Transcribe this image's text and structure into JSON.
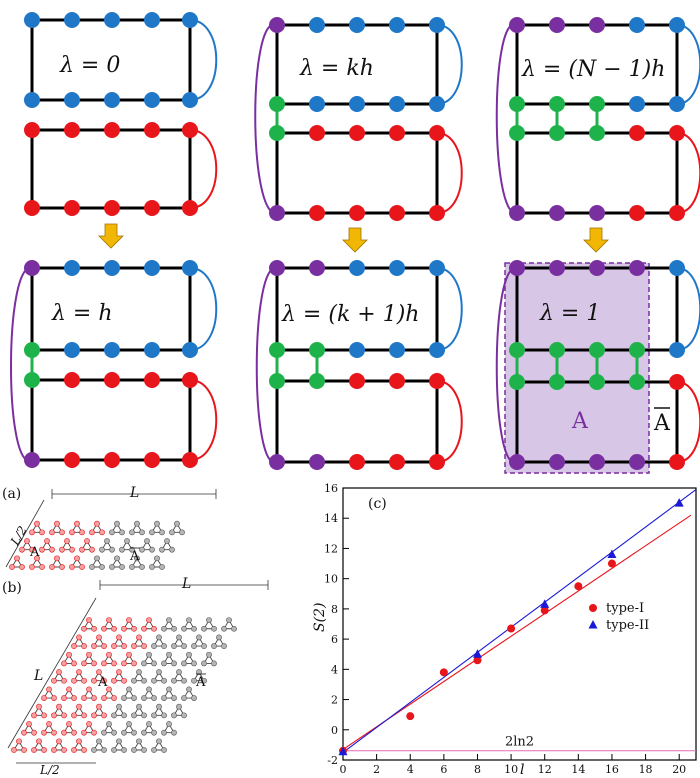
{
  "panels": {
    "top_left_label": "λ = 0",
    "top_mid_label": "λ = kh",
    "top_right_label": "λ = (N − 1)h",
    "bottom_left_label": "λ = h",
    "bottom_mid_label": "λ = (k + 1)h",
    "bottom_right_label": "λ = 1",
    "region_a": "A",
    "region_abar": "A"
  },
  "colors": {
    "blue": "#1f77c8",
    "red": "#e8151b",
    "green": "#1db34a",
    "purple": "#7a2fa0",
    "arrow": "#f2b705",
    "shade": "#c9b3dd"
  },
  "lattices": {
    "a_label": "(a)",
    "b_label": "(b)",
    "L": "L",
    "L_half": "L/2",
    "region_a": "A",
    "region_abar": "A"
  },
  "chart_data": {
    "type": "scatter",
    "panel_label": "(c)",
    "xlabel": "l",
    "ylabel": "S(2)",
    "xlim": [
      0,
      21
    ],
    "ylim": [
      -2,
      16
    ],
    "x_ticks": [
      0,
      2,
      4,
      6,
      8,
      10,
      12,
      14,
      16,
      18,
      20
    ],
    "y_ticks": [
      -2,
      0,
      2,
      4,
      6,
      8,
      10,
      12,
      14,
      16
    ],
    "series": [
      {
        "name": "type-I",
        "color": "#e8151b",
        "marker": "circle",
        "x": [
          0,
          4,
          6,
          8,
          10,
          12,
          14,
          16
        ],
        "y": [
          -1.39,
          0.9,
          3.8,
          4.6,
          6.7,
          7.9,
          9.5,
          11.0
        ],
        "fit": [
          [
            0,
            -1.3
          ],
          [
            20.7,
            14.2
          ]
        ]
      },
      {
        "name": "type-II",
        "color": "#1a1ad6",
        "marker": "triangle",
        "x": [
          0,
          8,
          12,
          16,
          20
        ],
        "y": [
          -1.45,
          5.0,
          8.3,
          11.6,
          15.0
        ],
        "fit": [
          [
            0,
            -1.5
          ],
          [
            21,
            15.9
          ]
        ]
      }
    ],
    "hline": {
      "y": -1.386,
      "label": "2ln2",
      "color": "#e36ab8"
    }
  }
}
